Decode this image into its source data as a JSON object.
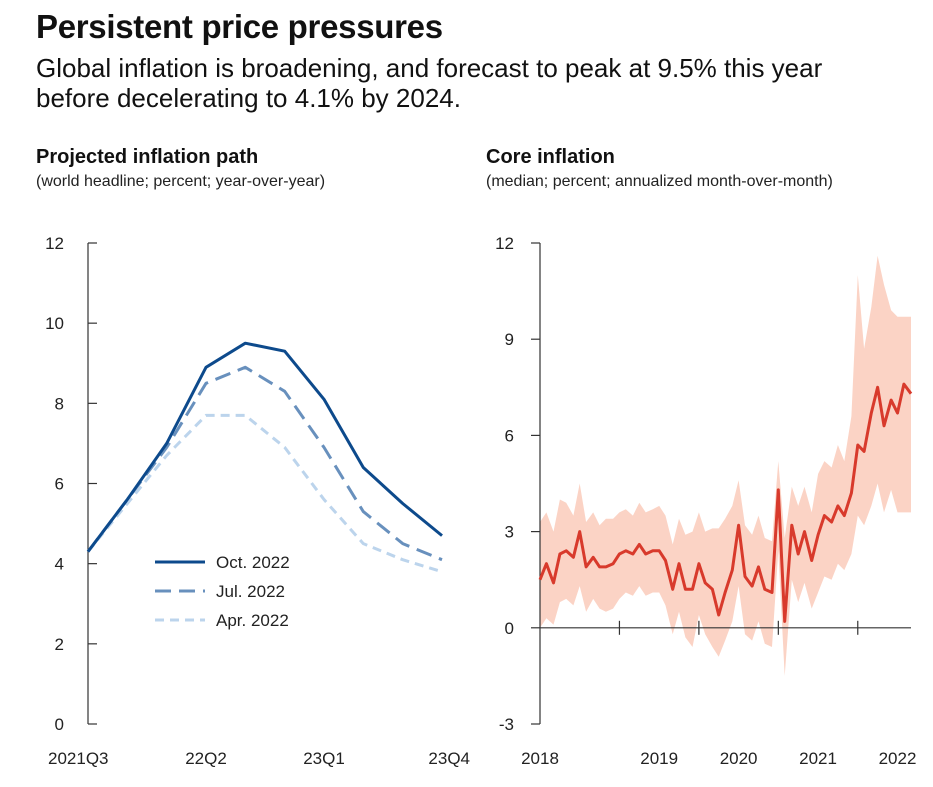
{
  "header": {
    "title": "Persistent price pressures",
    "subtitle": "Global inflation is broadening, and forecast to peak at 9.5% this year before decelerating to 4.1% by 2024."
  },
  "chart_data": [
    {
      "type": "line",
      "title": "Projected inflation path",
      "subtitle": "(world headline; percent;  year-over-year)",
      "ylim": [
        0,
        12
      ],
      "yticks": [
        "0",
        "2",
        "4",
        "6",
        "8",
        "10",
        "12"
      ],
      "x_tick_labels": [
        "2021Q3",
        "22Q2",
        "23Q1",
        "23Q4"
      ],
      "x": [
        "2021Q3",
        "2021Q4",
        "2022Q1",
        "2022Q2",
        "2022Q3",
        "2022Q4",
        "2023Q1",
        "2023Q2",
        "2023Q3",
        "2023Q4"
      ],
      "legend_position": "lower-left",
      "series": [
        {
          "name": "Oct. 2022",
          "style": "solid",
          "color": "#0d4a8c",
          "values": [
            4.3,
            5.6,
            7.0,
            8.9,
            9.5,
            9.3,
            8.1,
            6.4,
            5.5,
            4.7
          ]
        },
        {
          "name": "Jul. 2022",
          "style": "dashed",
          "color": "#6890bd",
          "values": [
            4.3,
            5.6,
            6.9,
            8.5,
            8.9,
            8.3,
            6.9,
            5.3,
            4.5,
            4.1
          ]
        },
        {
          "name": "Apr. 2022",
          "style": "dashed",
          "color": "#bcd4ec",
          "values": [
            4.3,
            5.5,
            6.7,
            7.7,
            7.7,
            6.9,
            5.6,
            4.5,
            4.1,
            3.8
          ]
        }
      ]
    },
    {
      "type": "line",
      "title": "Core inflation",
      "subtitle": "(median; percent; annualized month-over-month)",
      "ylim": [
        -3,
        12
      ],
      "yticks": [
        "-3",
        "0",
        "3",
        "6",
        "9",
        "12"
      ],
      "x_tick_labels": [
        "2018",
        "2019",
        "2020",
        "2021",
        "2022"
      ],
      "xlim": [
        2018.0,
        2022.67
      ],
      "series": [
        {
          "name": "",
          "color": "#d83a2c",
          "x": [
            2018.0,
            2018.08,
            2018.17,
            2018.25,
            2018.33,
            2018.42,
            2018.5,
            2018.58,
            2018.67,
            2018.75,
            2018.83,
            2018.92,
            2019.0,
            2019.08,
            2019.17,
            2019.25,
            2019.33,
            2019.42,
            2019.5,
            2019.58,
            2019.67,
            2019.75,
            2019.83,
            2019.92,
            2020.0,
            2020.08,
            2020.17,
            2020.25,
            2020.33,
            2020.42,
            2020.5,
            2020.58,
            2020.67,
            2020.75,
            2020.83,
            2020.92,
            2021.0,
            2021.08,
            2021.17,
            2021.25,
            2021.33,
            2021.42,
            2021.5,
            2021.58,
            2021.67,
            2021.75,
            2021.83,
            2021.92,
            2022.0,
            2022.08,
            2022.17,
            2022.25,
            2022.33,
            2022.42,
            2022.5,
            2022.58,
            2022.67
          ],
          "values": [
            1.5,
            2.0,
            1.4,
            2.3,
            2.4,
            2.2,
            3.0,
            1.9,
            2.2,
            1.9,
            1.9,
            2.0,
            2.3,
            2.4,
            2.3,
            2.6,
            2.3,
            2.4,
            2.4,
            2.1,
            1.2,
            2.0,
            1.2,
            1.2,
            2.0,
            1.4,
            1.2,
            0.4,
            1.1,
            1.8,
            3.2,
            1.6,
            1.3,
            1.9,
            1.2,
            1.1,
            4.3,
            0.2,
            3.2,
            2.3,
            3.0,
            2.1,
            2.9,
            3.5,
            3.3,
            3.8,
            3.5,
            4.2,
            5.7,
            5.5,
            6.7,
            7.5,
            6.3,
            7.1,
            6.7,
            7.6,
            7.3
          ]
        },
        {
          "name": "",
          "band": true,
          "color": "#fbd3c5",
          "upper": [
            3.3,
            3.6,
            3.0,
            4.0,
            3.9,
            3.5,
            4.5,
            3.3,
            3.6,
            3.2,
            3.4,
            3.4,
            3.6,
            3.7,
            3.5,
            3.9,
            3.6,
            3.7,
            3.8,
            3.5,
            2.6,
            3.4,
            2.9,
            3.0,
            3.6,
            3.0,
            3.1,
            3.1,
            3.4,
            3.8,
            4.6,
            3.2,
            2.9,
            3.5,
            2.8,
            2.7,
            5.2,
            2.8,
            4.4,
            3.8,
            4.4,
            3.6,
            4.8,
            5.2,
            5.0,
            5.7,
            5.2,
            6.6,
            11.0,
            8.7,
            10.0,
            11.6,
            10.7,
            9.9,
            9.7,
            9.7,
            9.7
          ],
          "lower": [
            0.0,
            0.3,
            0.1,
            0.8,
            0.9,
            0.7,
            1.3,
            0.5,
            0.9,
            0.6,
            0.5,
            0.6,
            0.9,
            1.1,
            1.0,
            1.3,
            1.0,
            1.1,
            1.1,
            0.7,
            -0.2,
            0.5,
            -0.3,
            -0.6,
            0.4,
            -0.2,
            -0.6,
            -0.9,
            -0.4,
            0.2,
            1.3,
            -0.2,
            -0.4,
            0.2,
            -0.5,
            -0.6,
            2.4,
            -1.5,
            1.5,
            0.8,
            1.4,
            0.6,
            1.1,
            1.6,
            1.5,
            2.0,
            1.8,
            2.3,
            3.5,
            3.2,
            3.8,
            4.5,
            3.6,
            4.3,
            3.6,
            3.6,
            3.6
          ]
        }
      ]
    }
  ]
}
